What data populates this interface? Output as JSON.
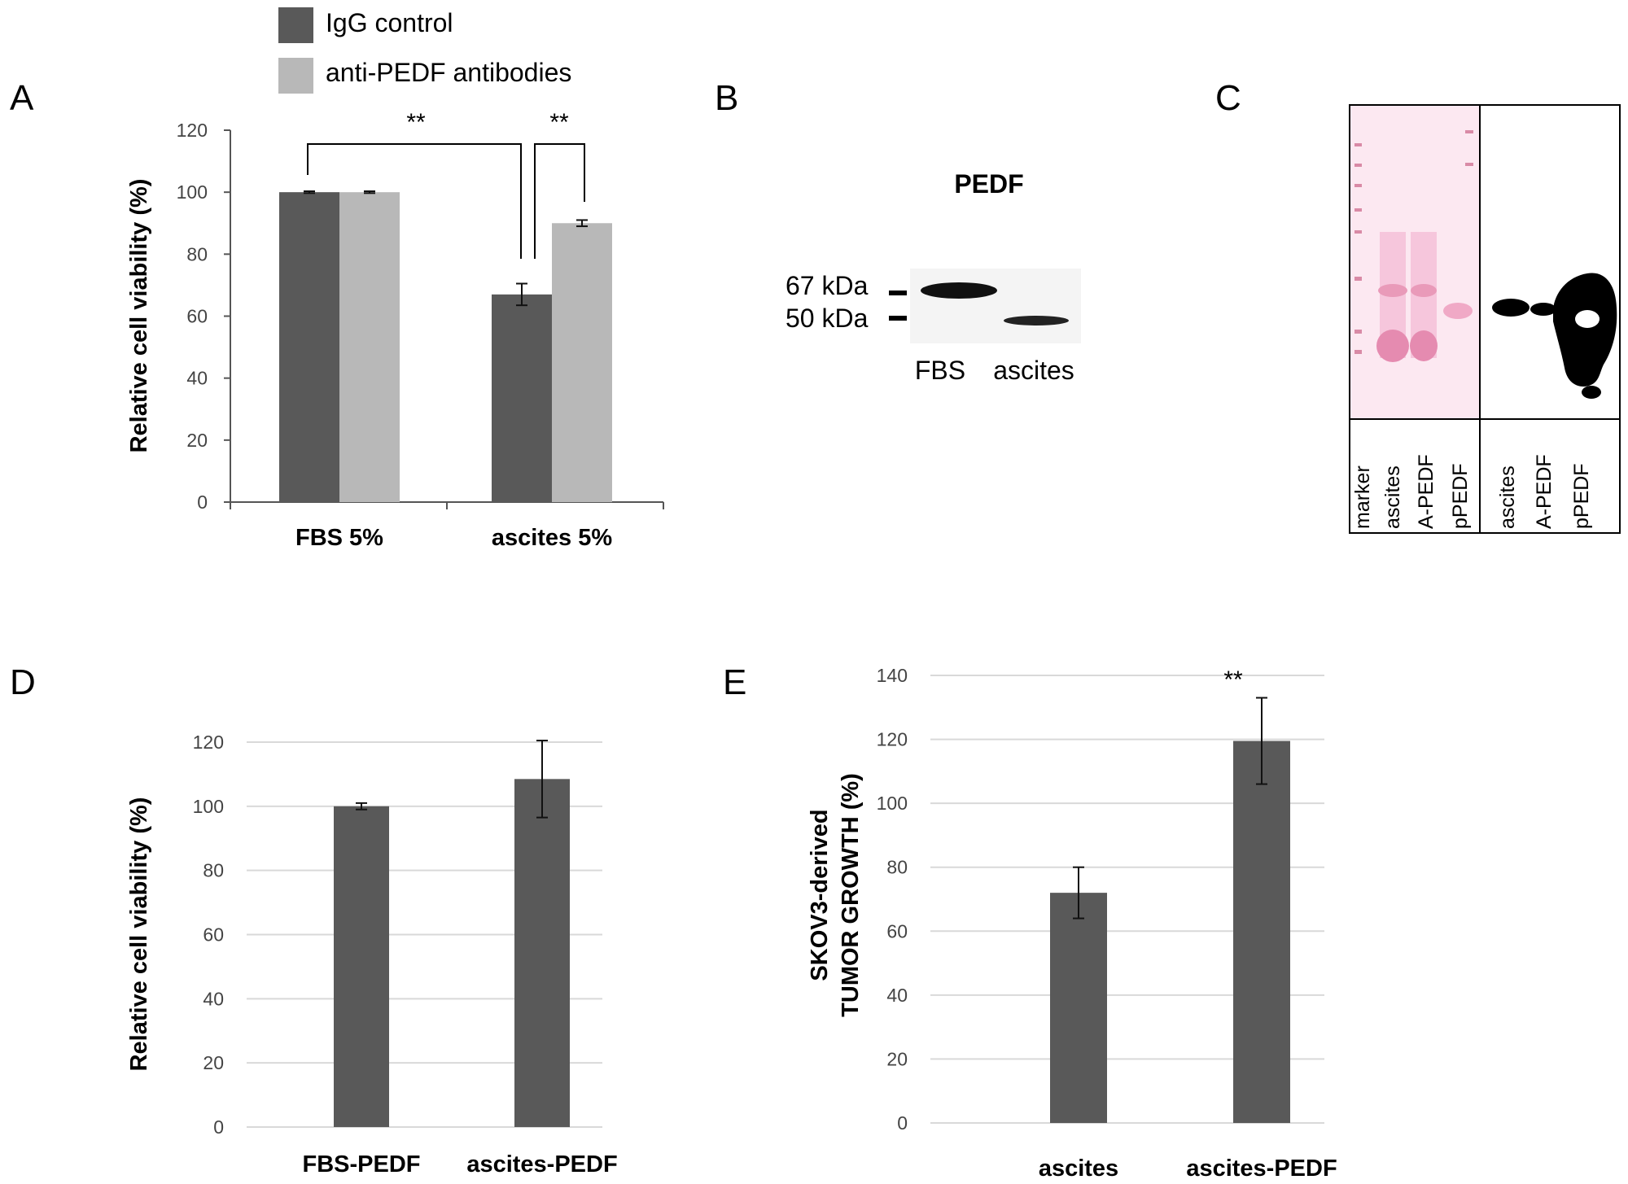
{
  "panel_letters": {
    "A": "A",
    "B": "B",
    "C": "C",
    "D": "D",
    "E": "E"
  },
  "legend": {
    "items": [
      {
        "label": "IgG control",
        "color": "#595959"
      },
      {
        "label": "anti-PEDF antibodies",
        "color": "#b8b8b8"
      }
    ]
  },
  "significance": {
    "a_left": "**",
    "a_right": "**",
    "e_right": "**"
  },
  "blot_b": {
    "title": "PEDF",
    "marker_67": "67 kDa",
    "marker_50": "50 kDa",
    "lanes": [
      "FBS",
      "ascites"
    ]
  },
  "blot_c": {
    "lanes": [
      "marker",
      "ascites",
      "A-PEDF",
      "pPEDF",
      "ascites",
      "A-PEDF",
      "pPEDF"
    ]
  },
  "chart_data": [
    {
      "id": "A",
      "type": "bar",
      "categories": [
        "FBS 5%",
        "ascites 5%"
      ],
      "series": [
        {
          "name": "IgG control",
          "values": [
            100,
            67
          ],
          "errors": [
            0.3,
            3.5
          ],
          "color": "#595959"
        },
        {
          "name": "anti-PEDF antibodies",
          "values": [
            100,
            90
          ],
          "errors": [
            0.3,
            1.0
          ],
          "color": "#b8b8b8"
        }
      ],
      "ylabel": "Relative cell viability (%)",
      "ylim": [
        0,
        120
      ],
      "yticks": [
        "0",
        "20",
        "40",
        "60",
        "80",
        "100",
        "120"
      ],
      "grid": false,
      "legend": "top"
    },
    {
      "id": "D",
      "type": "bar",
      "categories": [
        "FBS-PEDF",
        "ascites-PEDF"
      ],
      "series": [
        {
          "values": [
            100,
            108.5
          ],
          "errors": [
            1.0,
            12.0
          ],
          "color": "#595959"
        }
      ],
      "ylabel": "Relative cell viability (%)",
      "ylim": [
        0,
        120
      ],
      "yticks": [
        "0",
        "20",
        "40",
        "60",
        "80",
        "100",
        "120"
      ],
      "grid": true
    },
    {
      "id": "E",
      "type": "bar",
      "categories": [
        "ascites",
        "ascites-PEDF"
      ],
      "series": [
        {
          "values": [
            72,
            119.5
          ],
          "errors": [
            8.0,
            13.5
          ],
          "color": "#595959"
        }
      ],
      "ylabel": [
        "SKOV3-derived",
        "TUMOR GROWTH (%)"
      ],
      "ylim": [
        0,
        140
      ],
      "yticks": [
        "0",
        "20",
        "40",
        "60",
        "80",
        "100",
        "120",
        "140"
      ],
      "grid": true
    }
  ]
}
